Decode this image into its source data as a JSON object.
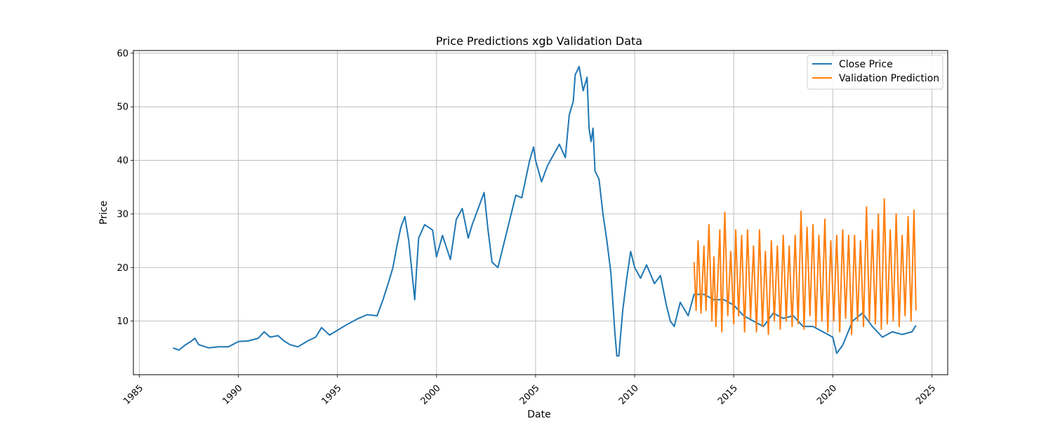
{
  "chart_data": {
    "type": "line",
    "title": "Price Predictions xgb Validation Data",
    "xlabel": "Date",
    "ylabel": "Price",
    "xlim": [
      1984.7,
      2025.8
    ],
    "ylim": [
      0,
      60.5
    ],
    "x_ticks": [
      1985,
      1990,
      1995,
      2000,
      2005,
      2010,
      2015,
      2020,
      2025
    ],
    "x_tick_labels": [
      "1985",
      "1990",
      "1995",
      "2000",
      "2005",
      "2010",
      "2015",
      "2020",
      "2025"
    ],
    "y_ticks": [
      10,
      20,
      30,
      40,
      50,
      60
    ],
    "y_tick_labels": [
      "10",
      "20",
      "30",
      "40",
      "50",
      "60"
    ],
    "grid": true,
    "legend_position": "top-right",
    "colors": {
      "close": "#1f77b4",
      "prediction": "#ff7f0e",
      "grid": "#b0b0b0"
    },
    "series": [
      {
        "name": "Close Price",
        "x": [
          1986.7,
          1987.0,
          1987.3,
          1987.6,
          1987.8,
          1988.0,
          1988.5,
          1989.0,
          1989.5,
          1990.0,
          1990.5,
          1991.0,
          1991.3,
          1991.6,
          1992.0,
          1992.3,
          1992.6,
          1993.0,
          1993.5,
          1993.9,
          1994.2,
          1994.6,
          1995.0,
          1995.5,
          1996.0,
          1996.5,
          1997.0,
          1997.3,
          1997.6,
          1997.8,
          1998.0,
          1998.2,
          1998.4,
          1998.6,
          1998.9,
          1999.0,
          1999.1,
          1999.4,
          1999.8,
          2000.0,
          2000.3,
          2000.7,
          2001.0,
          2001.3,
          2001.6,
          2001.8,
          2002.0,
          2002.4,
          2002.6,
          2002.8,
          2003.1,
          2003.3,
          2003.7,
          2004.0,
          2004.3,
          2004.7,
          2004.9,
          2005.0,
          2005.3,
          2005.6,
          2005.9,
          2006.2,
          2006.5,
          2006.7,
          2006.9,
          2007.0,
          2007.2,
          2007.4,
          2007.6,
          2007.7,
          2007.8,
          2007.9,
          2008.0,
          2008.2,
          2008.4,
          2008.6,
          2008.8,
          2009.0,
          2009.1,
          2009.2,
          2009.4,
          2009.6,
          2009.8,
          2010.0,
          2010.3,
          2010.6,
          2011.0,
          2011.3,
          2011.6,
          2011.8,
          2012.0,
          2012.3,
          2012.7,
          2013.0,
          2013.5,
          2014.0,
          2014.5,
          2015.0,
          2015.5,
          2016.0,
          2016.5,
          2017.0,
          2017.5,
          2018.0,
          2018.5,
          2019.0,
          2019.5,
          2020.0,
          2020.2,
          2020.5,
          2021.0,
          2021.5,
          2022.0,
          2022.5,
          2023.0,
          2023.5,
          2024.0,
          2024.2
        ],
        "y": [
          5.0,
          4.6,
          5.5,
          6.2,
          6.8,
          5.6,
          5.0,
          5.2,
          5.2,
          6.2,
          6.3,
          6.8,
          8.0,
          7.0,
          7.3,
          6.3,
          5.6,
          5.2,
          6.3,
          7.0,
          8.8,
          7.4,
          8.3,
          9.4,
          10.4,
          11.2,
          11.0,
          14.0,
          17.5,
          20.0,
          24.0,
          27.5,
          29.5,
          25.0,
          14.0,
          20.0,
          25.5,
          28.0,
          27.0,
          22.0,
          26.0,
          21.5,
          29.0,
          31.0,
          25.5,
          28.0,
          30.0,
          34.0,
          27.0,
          21.0,
          20.0,
          23.0,
          29.0,
          33.5,
          33.0,
          40.0,
          42.5,
          40.0,
          36.0,
          39.0,
          41.0,
          43.0,
          40.5,
          48.5,
          51.0,
          56.0,
          57.5,
          53.0,
          55.5,
          46.0,
          43.5,
          46.0,
          38.0,
          36.5,
          30.0,
          25.0,
          19.0,
          8.0,
          3.5,
          3.5,
          12.0,
          18.0,
          23.0,
          20.0,
          18.0,
          20.5,
          17.0,
          18.5,
          13.0,
          10.0,
          9.0,
          13.5,
          11.0,
          15.0,
          15.0,
          14.0,
          14.0,
          13.0,
          11.0,
          10.0,
          9.0,
          11.5,
          10.5,
          11.0,
          9.0,
          9.0,
          8.0,
          7.0,
          4.0,
          5.5,
          10.0,
          11.5,
          9.0,
          7.0,
          8.0,
          7.5,
          8.0,
          9.2
        ]
      },
      {
        "name": "Validation Prediction",
        "x": [
          2013.0,
          2013.1,
          2013.2,
          2013.35,
          2013.5,
          2013.6,
          2013.75,
          2013.9,
          2014.0,
          2014.1,
          2014.3,
          2014.4,
          2014.55,
          2014.7,
          2014.85,
          2015.0,
          2015.1,
          2015.25,
          2015.4,
          2015.55,
          2015.7,
          2015.85,
          2016.0,
          2016.15,
          2016.3,
          2016.45,
          2016.6,
          2016.75,
          2016.9,
          2017.05,
          2017.2,
          2017.35,
          2017.5,
          2017.65,
          2017.8,
          2017.95,
          2018.1,
          2018.25,
          2018.4,
          2018.55,
          2018.7,
          2018.85,
          2019.0,
          2019.15,
          2019.3,
          2019.45,
          2019.6,
          2019.75,
          2019.9,
          2020.05,
          2020.2,
          2020.35,
          2020.5,
          2020.65,
          2020.8,
          2020.95,
          2021.1,
          2021.25,
          2021.4,
          2021.55,
          2021.7,
          2021.85,
          2022.0,
          2022.15,
          2022.3,
          2022.45,
          2022.6,
          2022.75,
          2022.9,
          2023.05,
          2023.2,
          2023.35,
          2023.5,
          2023.65,
          2023.8,
          2023.95,
          2024.1,
          2024.2
        ],
        "y": [
          21.0,
          12.0,
          25.0,
          11.5,
          24.0,
          12.0,
          28.0,
          10.0,
          22.0,
          9.0,
          27.0,
          8.0,
          30.3,
          11.0,
          23.0,
          9.5,
          27.0,
          11.0,
          26.0,
          8.0,
          27.0,
          10.5,
          24.0,
          8.0,
          27.0,
          9.0,
          23.0,
          7.5,
          25.0,
          10.0,
          24.0,
          8.5,
          26.0,
          10.0,
          24.0,
          9.0,
          26.0,
          9.5,
          30.5,
          8.5,
          27.5,
          11.0,
          28.0,
          9.0,
          26.0,
          10.0,
          29.0,
          8.0,
          25.0,
          10.0,
          26.0,
          8.0,
          27.0,
          10.5,
          26.0,
          7.5,
          26.0,
          10.0,
          25.0,
          9.0,
          31.3,
          10.0,
          27.0,
          9.5,
          30.0,
          8.5,
          32.8,
          9.5,
          27.0,
          10.0,
          30.0,
          9.0,
          26.0,
          11.0,
          29.5,
          10.0,
          30.7,
          12.0
        ]
      }
    ]
  }
}
